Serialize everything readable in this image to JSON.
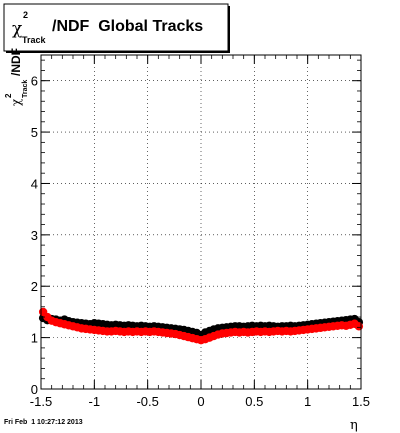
{
  "title": {
    "symbol": "χ",
    "superscript": "2",
    "subscript": "Track",
    "rest": "/NDF  Global Tracks"
  },
  "footer": "Fri Feb  1 10:27:12 2013",
  "chart_data": {
    "type": "scatter",
    "xlabel": "η",
    "ylabel": {
      "symbol": "χ",
      "superscript": "2",
      "subscript": "Track",
      "rest": "/NDF"
    },
    "xlim": [
      -1.5,
      1.5
    ],
    "ylim": [
      0,
      6.5
    ],
    "xticks": [
      "-1.5",
      "-1",
      "-0.5",
      "0",
      "0.5",
      "1",
      "1.5"
    ],
    "yticks": [
      "0",
      "1",
      "2",
      "3",
      "4",
      "5",
      "6"
    ],
    "grid": true,
    "series": [
      {
        "color": "#000000",
        "x": [
          -1.48,
          -1.44,
          -1.4,
          -1.36,
          -1.32,
          -1.28,
          -1.24,
          -1.2,
          -1.16,
          -1.12,
          -1.08,
          -1.04,
          -1.0,
          -0.96,
          -0.92,
          -0.88,
          -0.84,
          -0.8,
          -0.76,
          -0.72,
          -0.68,
          -0.64,
          -0.6,
          -0.56,
          -0.52,
          -0.48,
          -0.44,
          -0.4,
          -0.36,
          -0.32,
          -0.28,
          -0.24,
          -0.2,
          -0.16,
          -0.12,
          -0.08,
          -0.04,
          0.0,
          0.04,
          0.08,
          0.12,
          0.16,
          0.2,
          0.24,
          0.28,
          0.32,
          0.36,
          0.4,
          0.44,
          0.48,
          0.52,
          0.56,
          0.6,
          0.64,
          0.68,
          0.72,
          0.76,
          0.8,
          0.84,
          0.88,
          0.92,
          0.96,
          1.0,
          1.04,
          1.08,
          1.12,
          1.16,
          1.2,
          1.24,
          1.28,
          1.32,
          1.36,
          1.4,
          1.44,
          1.48
        ],
        "y": [
          1.38,
          1.34,
          1.36,
          1.35,
          1.33,
          1.35,
          1.32,
          1.3,
          1.29,
          1.28,
          1.27,
          1.26,
          1.28,
          1.27,
          1.26,
          1.25,
          1.24,
          1.25,
          1.24,
          1.23,
          1.24,
          1.23,
          1.22,
          1.23,
          1.22,
          1.21,
          1.22,
          1.21,
          1.2,
          1.19,
          1.18,
          1.17,
          1.16,
          1.15,
          1.13,
          1.11,
          1.09,
          1.05,
          1.1,
          1.13,
          1.16,
          1.18,
          1.19,
          1.2,
          1.21,
          1.22,
          1.22,
          1.21,
          1.22,
          1.23,
          1.22,
          1.23,
          1.22,
          1.23,
          1.22,
          1.21,
          1.22,
          1.22,
          1.23,
          1.22,
          1.23,
          1.24,
          1.25,
          1.26,
          1.27,
          1.28,
          1.29,
          1.3,
          1.31,
          1.32,
          1.33,
          1.34,
          1.35,
          1.36,
          1.3
        ]
      },
      {
        "color": "#ff0000",
        "x": [
          -1.48,
          -1.44,
          -1.4,
          -1.36,
          -1.32,
          -1.28,
          -1.24,
          -1.2,
          -1.16,
          -1.12,
          -1.08,
          -1.04,
          -1.0,
          -0.96,
          -0.92,
          -0.88,
          -0.84,
          -0.8,
          -0.76,
          -0.72,
          -0.68,
          -0.64,
          -0.6,
          -0.56,
          -0.52,
          -0.48,
          -0.44,
          -0.4,
          -0.36,
          -0.32,
          -0.28,
          -0.24,
          -0.2,
          -0.16,
          -0.12,
          -0.08,
          -0.04,
          0.0,
          0.04,
          0.08,
          0.12,
          0.16,
          0.2,
          0.24,
          0.28,
          0.32,
          0.36,
          0.4,
          0.44,
          0.48,
          0.52,
          0.56,
          0.6,
          0.64,
          0.68,
          0.72,
          0.76,
          0.8,
          0.84,
          0.88,
          0.92,
          0.96,
          1.0,
          1.04,
          1.08,
          1.12,
          1.16,
          1.2,
          1.24,
          1.28,
          1.32,
          1.36,
          1.4,
          1.44,
          1.48
        ],
        "y": [
          1.5,
          1.4,
          1.33,
          1.3,
          1.28,
          1.26,
          1.24,
          1.22,
          1.2,
          1.18,
          1.17,
          1.16,
          1.15,
          1.14,
          1.13,
          1.12,
          1.12,
          1.13,
          1.12,
          1.11,
          1.12,
          1.11,
          1.12,
          1.11,
          1.12,
          1.11,
          1.12,
          1.11,
          1.1,
          1.09,
          1.08,
          1.07,
          1.05,
          1.03,
          1.01,
          0.99,
          0.97,
          0.95,
          0.97,
          1.0,
          1.03,
          1.06,
          1.08,
          1.09,
          1.1,
          1.11,
          1.1,
          1.11,
          1.1,
          1.11,
          1.12,
          1.11,
          1.12,
          1.11,
          1.12,
          1.13,
          1.12,
          1.13,
          1.12,
          1.13,
          1.14,
          1.15,
          1.16,
          1.17,
          1.18,
          1.19,
          1.2,
          1.21,
          1.22,
          1.23,
          1.24,
          1.23,
          1.25,
          1.27,
          1.22
        ]
      }
    ]
  }
}
